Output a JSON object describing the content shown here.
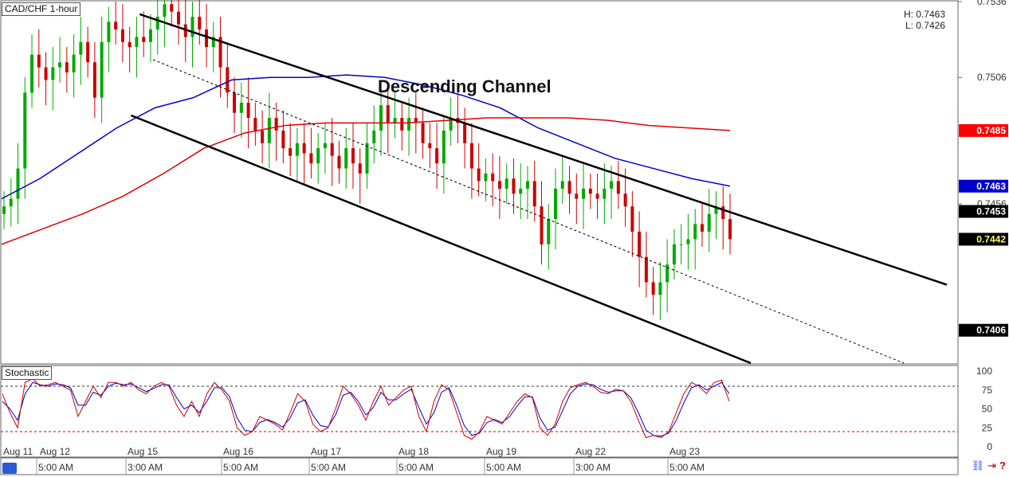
{
  "header": {
    "symbol_label": "CAD/CHF 1-hour",
    "high_label": "H: 0.7463",
    "low_label": "L: 0.7426"
  },
  "annotation": "Descending Channel",
  "indicator_label": "Stochastic",
  "price_axis": {
    "ticks": [
      "0.7536",
      "0.7506",
      "0.7456"
    ]
  },
  "price_tags": [
    {
      "value": "0.7485",
      "bg": "#ff0000",
      "fg": "#ffffff",
      "price": 0.7485
    },
    {
      "value": "0.7463",
      "bg": "#0000cc",
      "fg": "#ffffff",
      "price": 0.7463
    },
    {
      "value": "0.7453",
      "bg": "#000000",
      "fg": "#ffffff",
      "price": 0.7453
    },
    {
      "value": "0.7442",
      "bg": "#000000",
      "fg": "#ffff66",
      "price": 0.7442
    },
    {
      "value": "0.7406",
      "bg": "#000000",
      "fg": "#ffffff",
      "price": 0.7406
    }
  ],
  "stoch_axis": {
    "ticks": [
      "100",
      "75",
      "50",
      "25",
      "0"
    ],
    "overbought": 80,
    "oversold": 20
  },
  "time_axis": {
    "upper": [
      "Aug 11",
      "Aug 12",
      "Aug 15",
      "Aug 16",
      "Aug 17",
      "Aug 18",
      "Aug 19",
      "Aug 22",
      "Aug 23"
    ],
    "lower": [
      "5:00 AM",
      "3:00 AM",
      "5:00 AM",
      "5:00 AM",
      "5:00 AM",
      "5:00 AM",
      "3:00 AM",
      "5:00 AM"
    ]
  },
  "colors": {
    "sma_blue": "#0000cc",
    "sma_red": "#dd0000",
    "up_candle": "#00aa00",
    "down_candle": "#cc0000",
    "stoch_k": "#cc0000",
    "stoch_d": "#0000cc"
  },
  "chart_data": {
    "type": "candlestick",
    "title": "CAD/CHF 1-hour",
    "ylim": [
      0.7393,
      0.7536
    ],
    "high": 0.7463,
    "low": 0.7426,
    "close_series": [
      0.7455,
      0.7458,
      0.747,
      0.75,
      0.7515,
      0.751,
      0.7505,
      0.751,
      0.7512,
      0.7508,
      0.7515,
      0.752,
      0.7512,
      0.7498,
      0.752,
      0.7528,
      0.7525,
      0.752,
      0.7518,
      0.7522,
      0.752,
      0.7525,
      0.753,
      0.7535,
      0.7532,
      0.7527,
      0.7522,
      0.753,
      0.7525,
      0.7518,
      0.7522,
      0.751,
      0.75,
      0.7492,
      0.7496,
      0.749,
      0.7485,
      0.748,
      0.749,
      0.7485,
      0.7478,
      0.7475,
      0.748,
      0.7476,
      0.7472,
      0.7478,
      0.748,
      0.7475,
      0.747,
      0.7478,
      0.7472,
      0.7468,
      0.748,
      0.7485,
      0.7495,
      0.7488,
      0.749,
      0.7485,
      0.749,
      0.7488,
      0.748,
      0.7478,
      0.7472,
      0.7485,
      0.749,
      0.7488,
      0.748,
      0.747,
      0.7465,
      0.7468,
      0.7465,
      0.7462,
      0.7466,
      0.746,
      0.7462,
      0.7465,
      0.7455,
      0.744,
      0.745,
      0.7462,
      0.7465,
      0.746,
      0.7458,
      0.7462,
      0.746,
      0.7458,
      0.7462,
      0.7465,
      0.746,
      0.7455,
      0.7445,
      0.7435,
      0.7425,
      0.742,
      0.7425,
      0.7432,
      0.744,
      0.744,
      0.7442,
      0.7448,
      0.7445,
      0.7452,
      0.7455,
      0.745,
      0.7442
    ],
    "sma_blue": {
      "name": "",
      "values": [
        0.7458,
        0.7466,
        0.7476,
        0.7486,
        0.7494,
        0.7498,
        0.7505,
        0.7506,
        0.7506,
        0.7507,
        0.7506,
        0.7503,
        0.7499,
        0.7494,
        0.7486,
        0.748,
        0.7474,
        0.747,
        0.7466,
        0.7463
      ]
    },
    "sma_red": {
      "name": "",
      "values": [
        0.744,
        0.7446,
        0.7452,
        0.7459,
        0.7468,
        0.7478,
        0.7484,
        0.7487,
        0.7488,
        0.7488,
        0.7488,
        0.7489,
        0.749,
        0.749,
        0.749,
        0.7489,
        0.7487,
        0.7486,
        0.7485
      ]
    },
    "channel": {
      "upper": [
        [
          0.14,
          0.7531
        ],
        [
          0.94,
          0.742
        ]
      ],
      "lower": [
        [
          0.13,
          0.7491
        ],
        [
          0.74,
          0.7393
        ]
      ],
      "mid": [
        [
          0.15,
          0.7511
        ],
        [
          0.89,
          0.7393
        ]
      ]
    },
    "stochastic": {
      "k": [
        70,
        45,
        25,
        85,
        90,
        80,
        82,
        85,
        80,
        75,
        40,
        60,
        80,
        65,
        85,
        85,
        80,
        85,
        75,
        70,
        80,
        85,
        80,
        55,
        40,
        60,
        40,
        70,
        85,
        75,
        60,
        25,
        15,
        20,
        40,
        35,
        30,
        22,
        45,
        70,
        60,
        30,
        20,
        25,
        50,
        80,
        70,
        55,
        35,
        60,
        80,
        55,
        65,
        75,
        80,
        40,
        20,
        60,
        82,
        75,
        45,
        15,
        10,
        20,
        40,
        35,
        30,
        45,
        60,
        70,
        65,
        25,
        15,
        30,
        60,
        78,
        82,
        85,
        80,
        72,
        70,
        76,
        74,
        60,
        35,
        12,
        15,
        12,
        20,
        45,
        70,
        85,
        80,
        70,
        85,
        88,
        60
      ],
      "d": [
        60,
        50,
        35,
        70,
        85,
        82,
        80,
        83,
        82,
        78,
        55,
        55,
        72,
        68,
        80,
        84,
        82,
        83,
        78,
        73,
        77,
        82,
        82,
        65,
        50,
        55,
        45,
        60,
        78,
        78,
        66,
        38,
        22,
        20,
        32,
        36,
        32,
        26,
        38,
        58,
        62,
        42,
        28,
        26,
        42,
        68,
        72,
        60,
        42,
        52,
        72,
        62,
        62,
        70,
        76,
        52,
        30,
        45,
        72,
        78,
        55,
        28,
        15,
        18,
        32,
        36,
        32,
        40,
        54,
        66,
        66,
        38,
        22,
        26,
        48,
        70,
        80,
        83,
        82,
        76,
        72,
        74,
        74,
        65,
        45,
        22,
        15,
        14,
        18,
        35,
        58,
        78,
        82,
        75,
        80,
        85,
        70
      ]
    }
  }
}
